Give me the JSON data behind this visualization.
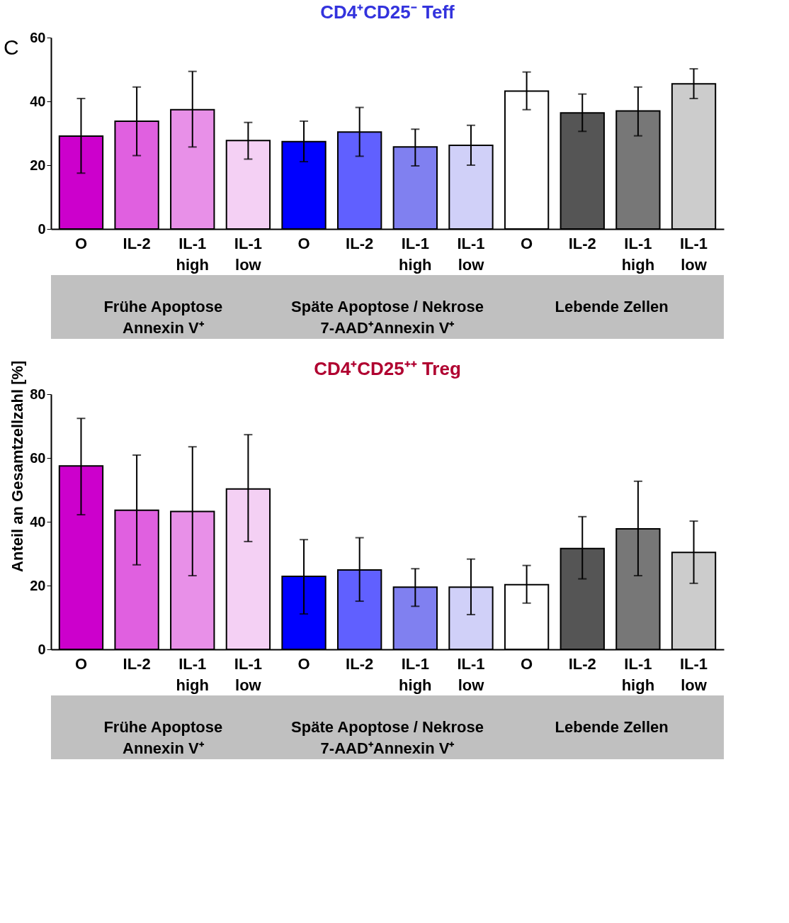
{
  "chart_data": [
    {
      "type": "bar",
      "title": "CD4⁺CD25⁻ Teff",
      "categories": [
        "O",
        "IL-2",
        "IL-1 high",
        "IL-1 low",
        "O",
        "IL-2",
        "IL-1 high",
        "IL-1 low",
        "O",
        "IL-2",
        "IL-1 high",
        "IL-1 low"
      ],
      "values": [
        29.1,
        33.8,
        37.4,
        27.7,
        27.4,
        30.4,
        25.7,
        26.2,
        43.2,
        36.4,
        37.0,
        45.5
      ],
      "errors": [
        [
          17.5,
          40.9
        ],
        [
          23.0,
          44.5
        ],
        [
          25.7,
          49.4
        ],
        [
          21.9,
          33.4
        ],
        [
          21.1,
          33.8
        ],
        [
          22.8,
          38.1
        ],
        [
          19.8,
          31.3
        ],
        [
          20.0,
          32.5
        ],
        [
          37.4,
          49.2
        ],
        [
          30.6,
          42.3
        ],
        [
          29.2,
          44.5
        ],
        [
          40.9,
          50.2
        ]
      ],
      "colors": [
        "#cc00cc",
        "#e060e0",
        "#e890e8",
        "#f4d0f4",
        "#0000ff",
        "#6060ff",
        "#8080f0",
        "#d0d0f8",
        "#ffffff",
        "#555555",
        "#777777",
        "#cccccc"
      ],
      "ylim": [
        0,
        60
      ],
      "yticks": [
        0,
        20,
        40,
        60
      ],
      "annotations": [
        "C",
        "Frühe Apoptose\nAnnexin V⁺",
        "Späte Apoptose / Nekrose\n7-AAD⁺Annexin V⁺",
        "Lebende Zellen"
      ]
    },
    {
      "type": "bar",
      "title": "CD4⁺CD25⁺⁺ Treg",
      "ylabel": "Anteil an Gesamtzellzahl [%]",
      "categories": [
        "O",
        "IL-2",
        "IL-1 high",
        "IL-1 low",
        "O",
        "IL-2",
        "IL-1 high",
        "IL-1 low",
        "O",
        "IL-2",
        "IL-1 high",
        "IL-1 low"
      ],
      "values": [
        57.5,
        43.6,
        43.2,
        50.3,
        22.9,
        24.9,
        19.5,
        19.5,
        20.3,
        31.6,
        37.8,
        30.4
      ],
      "errors": [
        [
          42.2,
          72.4
        ],
        [
          26.5,
          60.9
        ],
        [
          23.1,
          63.5
        ],
        [
          33.8,
          67.3
        ],
        [
          11.1,
          34.4
        ],
        [
          15.1,
          35.0
        ],
        [
          13.5,
          25.3
        ],
        [
          10.9,
          28.3
        ],
        [
          14.5,
          26.3
        ],
        [
          22.1,
          41.6
        ],
        [
          23.1,
          52.7
        ],
        [
          20.7,
          40.2
        ]
      ],
      "colors": [
        "#cc00cc",
        "#e060e0",
        "#e890e8",
        "#f4d0f4",
        "#0000ff",
        "#6060ff",
        "#8080f0",
        "#d0d0f8",
        "#ffffff",
        "#555555",
        "#777777",
        "#cccccc"
      ],
      "ylim": [
        0,
        80
      ],
      "yticks": [
        0,
        20,
        40,
        60,
        80
      ],
      "annotations": [
        "Frühe Apoptose\nAnnexin V⁺",
        "Späte Apoptose / Nekrose\n7-AAD⁺Annexin V⁺",
        "Lebende Zellen"
      ]
    }
  ]
}
